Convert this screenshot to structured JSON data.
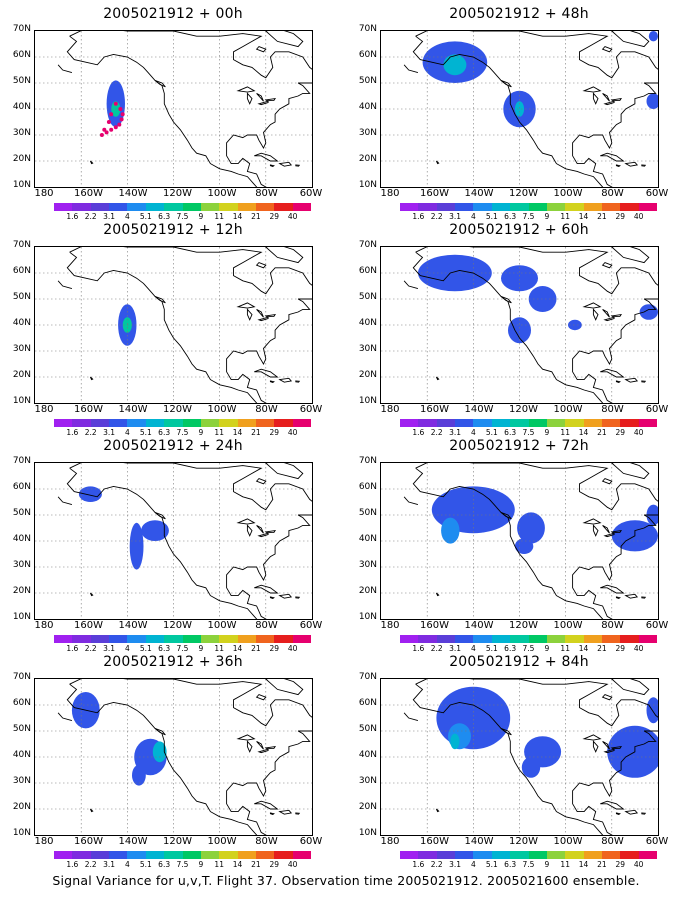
{
  "panels": [
    {
      "title": "2005021912 + 00h",
      "blobs": [
        {
          "lon": -145,
          "lat": 42,
          "rx": 4,
          "ry": 9,
          "level": 3
        },
        {
          "lon": -145,
          "lat": 40,
          "rx": 2,
          "ry": 3,
          "level": 6
        }
      ],
      "track": true
    },
    {
      "title": "2005021912 + 12h",
      "blobs": [
        {
          "lon": -140,
          "lat": 40,
          "rx": 4,
          "ry": 8,
          "level": 3
        },
        {
          "lon": -140,
          "lat": 40,
          "rx": 2,
          "ry": 3,
          "level": 6
        }
      ]
    },
    {
      "title": "2005021912 + 24h",
      "blobs": [
        {
          "lon": -156,
          "lat": 58,
          "rx": 5,
          "ry": 3,
          "level": 3
        },
        {
          "lon": -136,
          "lat": 38,
          "rx": 3,
          "ry": 9,
          "level": 3
        },
        {
          "lon": -128,
          "lat": 44,
          "rx": 6,
          "ry": 4,
          "level": 3
        }
      ]
    },
    {
      "title": "2005021912 + 36h",
      "blobs": [
        {
          "lon": -158,
          "lat": 58,
          "rx": 6,
          "ry": 7,
          "level": 3
        },
        {
          "lon": -130,
          "lat": 40,
          "rx": 7,
          "ry": 7,
          "level": 3
        },
        {
          "lon": -126,
          "lat": 42,
          "rx": 3,
          "ry": 4,
          "level": 5
        },
        {
          "lon": -135,
          "lat": 33,
          "rx": 3,
          "ry": 4,
          "level": 3
        }
      ]
    },
    {
      "title": "2005021912 + 48h",
      "blobs": [
        {
          "lon": -148,
          "lat": 58,
          "rx": 14,
          "ry": 8,
          "level": 3
        },
        {
          "lon": -148,
          "lat": 57,
          "rx": 5,
          "ry": 4,
          "level": 5
        },
        {
          "lon": -120,
          "lat": 40,
          "rx": 7,
          "ry": 7,
          "level": 3
        },
        {
          "lon": -120,
          "lat": 40,
          "rx": 2,
          "ry": 3,
          "level": 5
        },
        {
          "lon": -62,
          "lat": 43,
          "rx": 3,
          "ry": 3,
          "level": 3
        },
        {
          "lon": -62,
          "lat": 68,
          "rx": 2,
          "ry": 2,
          "level": 3
        }
      ]
    },
    {
      "title": "2005021912 + 60h",
      "blobs": [
        {
          "lon": -148,
          "lat": 60,
          "rx": 16,
          "ry": 7,
          "level": 3
        },
        {
          "lon": -120,
          "lat": 58,
          "rx": 8,
          "ry": 5,
          "level": 3
        },
        {
          "lon": -110,
          "lat": 50,
          "rx": 6,
          "ry": 5,
          "level": 3
        },
        {
          "lon": -120,
          "lat": 38,
          "rx": 5,
          "ry": 5,
          "level": 3
        },
        {
          "lon": -96,
          "lat": 40,
          "rx": 3,
          "ry": 2,
          "level": 3
        },
        {
          "lon": -64,
          "lat": 45,
          "rx": 4,
          "ry": 3,
          "level": 3
        }
      ]
    },
    {
      "title": "2005021912 + 72h",
      "blobs": [
        {
          "lon": -140,
          "lat": 52,
          "rx": 18,
          "ry": 9,
          "level": 3
        },
        {
          "lon": -150,
          "lat": 44,
          "rx": 4,
          "ry": 5,
          "level": 4
        },
        {
          "lon": -115,
          "lat": 45,
          "rx": 6,
          "ry": 6,
          "level": 3
        },
        {
          "lon": -118,
          "lat": 38,
          "rx": 4,
          "ry": 3,
          "level": 3
        },
        {
          "lon": -70,
          "lat": 42,
          "rx": 10,
          "ry": 6,
          "level": 3
        },
        {
          "lon": -62,
          "lat": 50,
          "rx": 3,
          "ry": 4,
          "level": 3
        }
      ]
    },
    {
      "title": "2005021912 + 84h",
      "blobs": [
        {
          "lon": -140,
          "lat": 55,
          "rx": 16,
          "ry": 12,
          "level": 3
        },
        {
          "lon": -146,
          "lat": 48,
          "rx": 5,
          "ry": 5,
          "level": 4
        },
        {
          "lon": -148,
          "lat": 46,
          "rx": 2,
          "ry": 3,
          "level": 5
        },
        {
          "lon": -110,
          "lat": 42,
          "rx": 8,
          "ry": 6,
          "level": 3
        },
        {
          "lon": -115,
          "lat": 36,
          "rx": 4,
          "ry": 4,
          "level": 3
        },
        {
          "lon": -70,
          "lat": 42,
          "rx": 12,
          "ry": 10,
          "level": 3
        },
        {
          "lon": -62,
          "lat": 58,
          "rx": 3,
          "ry": 5,
          "level": 3
        }
      ]
    }
  ],
  "lat_labels": [
    "70N",
    "60N",
    "50N",
    "40N",
    "30N",
    "20N",
    "10N"
  ],
  "lon_labels": [
    "180",
    "160W",
    "140W",
    "120W",
    "100W",
    "80W",
    "60W"
  ],
  "colorbar": {
    "labels": [
      "1.6",
      "2.2",
      "3.1",
      "4",
      "5.1",
      "6.3",
      "7.5",
      "9",
      "11",
      "14",
      "21",
      "29",
      "40"
    ],
    "colors": [
      "#a020f0",
      "#7f2be0",
      "#5a3ed8",
      "#3255e8",
      "#1e8cf0",
      "#00b4d2",
      "#00c8a0",
      "#00c864",
      "#8cd23c",
      "#d2d21e",
      "#f0a01e",
      "#f0641e",
      "#e61e1e",
      "#e6006e"
    ]
  },
  "chart_data": {
    "type": "heatmap",
    "series": [
      {
        "name": "2005021912 + 00h"
      },
      {
        "name": "2005021912 + 12h"
      },
      {
        "name": "2005021912 + 24h"
      },
      {
        "name": "2005021912 + 36h"
      },
      {
        "name": "2005021912 + 48h"
      },
      {
        "name": "2005021912 + 60h"
      },
      {
        "name": "2005021912 + 72h"
      },
      {
        "name": "2005021912 + 84h"
      }
    ],
    "x_range": [
      "180",
      "60W"
    ],
    "y_range": [
      "10N",
      "70N"
    ],
    "grid": true
  },
  "caption": "Signal Variance for u,v,T. Flight 37. Observation time 2005021912. 2005021600 ensemble."
}
